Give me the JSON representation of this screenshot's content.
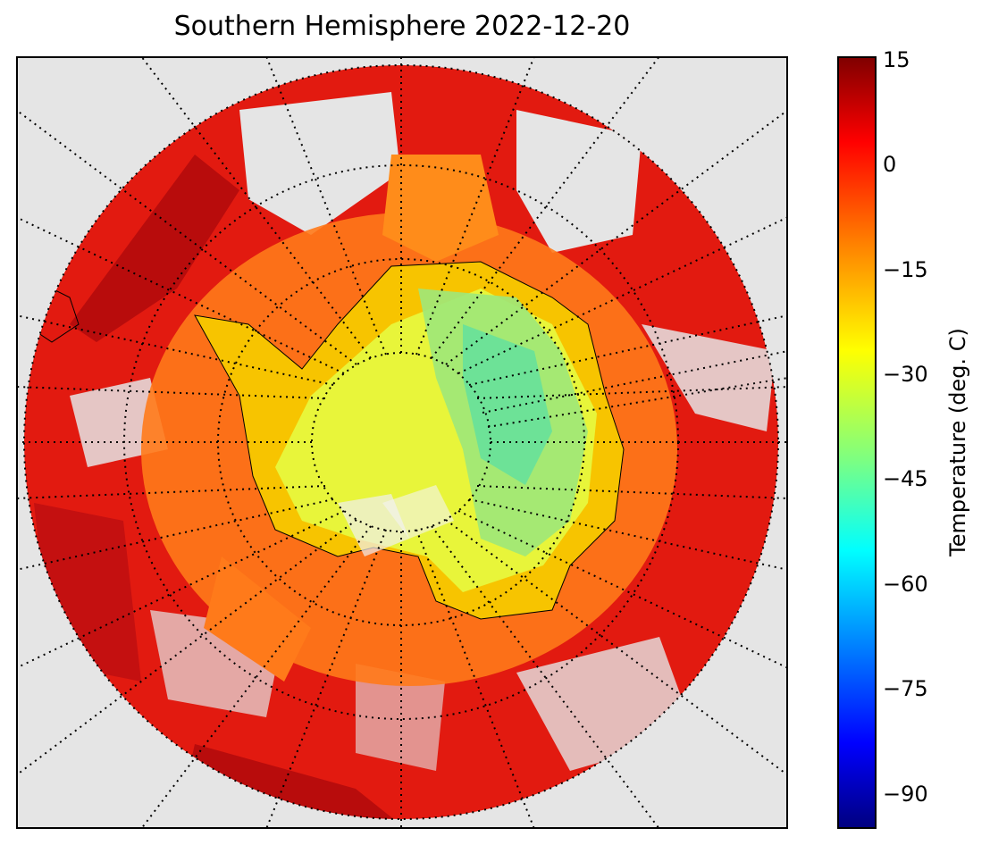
{
  "title": "Southern Hemisphere 2022-12-20",
  "colorbar": {
    "label": "Temperature (deg. C)",
    "ticks": [
      "15",
      "0",
      "−15",
      "−30",
      "−45",
      "−60",
      "−75",
      "−90"
    ],
    "tick_values": [
      15,
      0,
      -15,
      -30,
      -45,
      -60,
      -75,
      -90
    ],
    "min": -95,
    "max": 15,
    "colormap": "jet",
    "colors": [
      "#00007f",
      "#0000ff",
      "#007fff",
      "#00ffff",
      "#7fff7f",
      "#ffff00",
      "#ff7f00",
      "#ff0000",
      "#7f0000"
    ]
  },
  "map": {
    "projection": "south-polar-stereographic",
    "background": "#e5e5e5",
    "graticule_style": "dotted",
    "meridian_spacing_deg": 10,
    "parallel_spacing_deg": 10,
    "region_colors": {
      "interior_high_plateau": "#7fe37f",
      "interior_plateau": "#e8f53a",
      "antarctic_margin": "#f7c400",
      "sea_ice_ring": "#ff7a1a",
      "open_ocean": "#e21a10",
      "warm_ocean": "#b80c0c"
    }
  }
}
